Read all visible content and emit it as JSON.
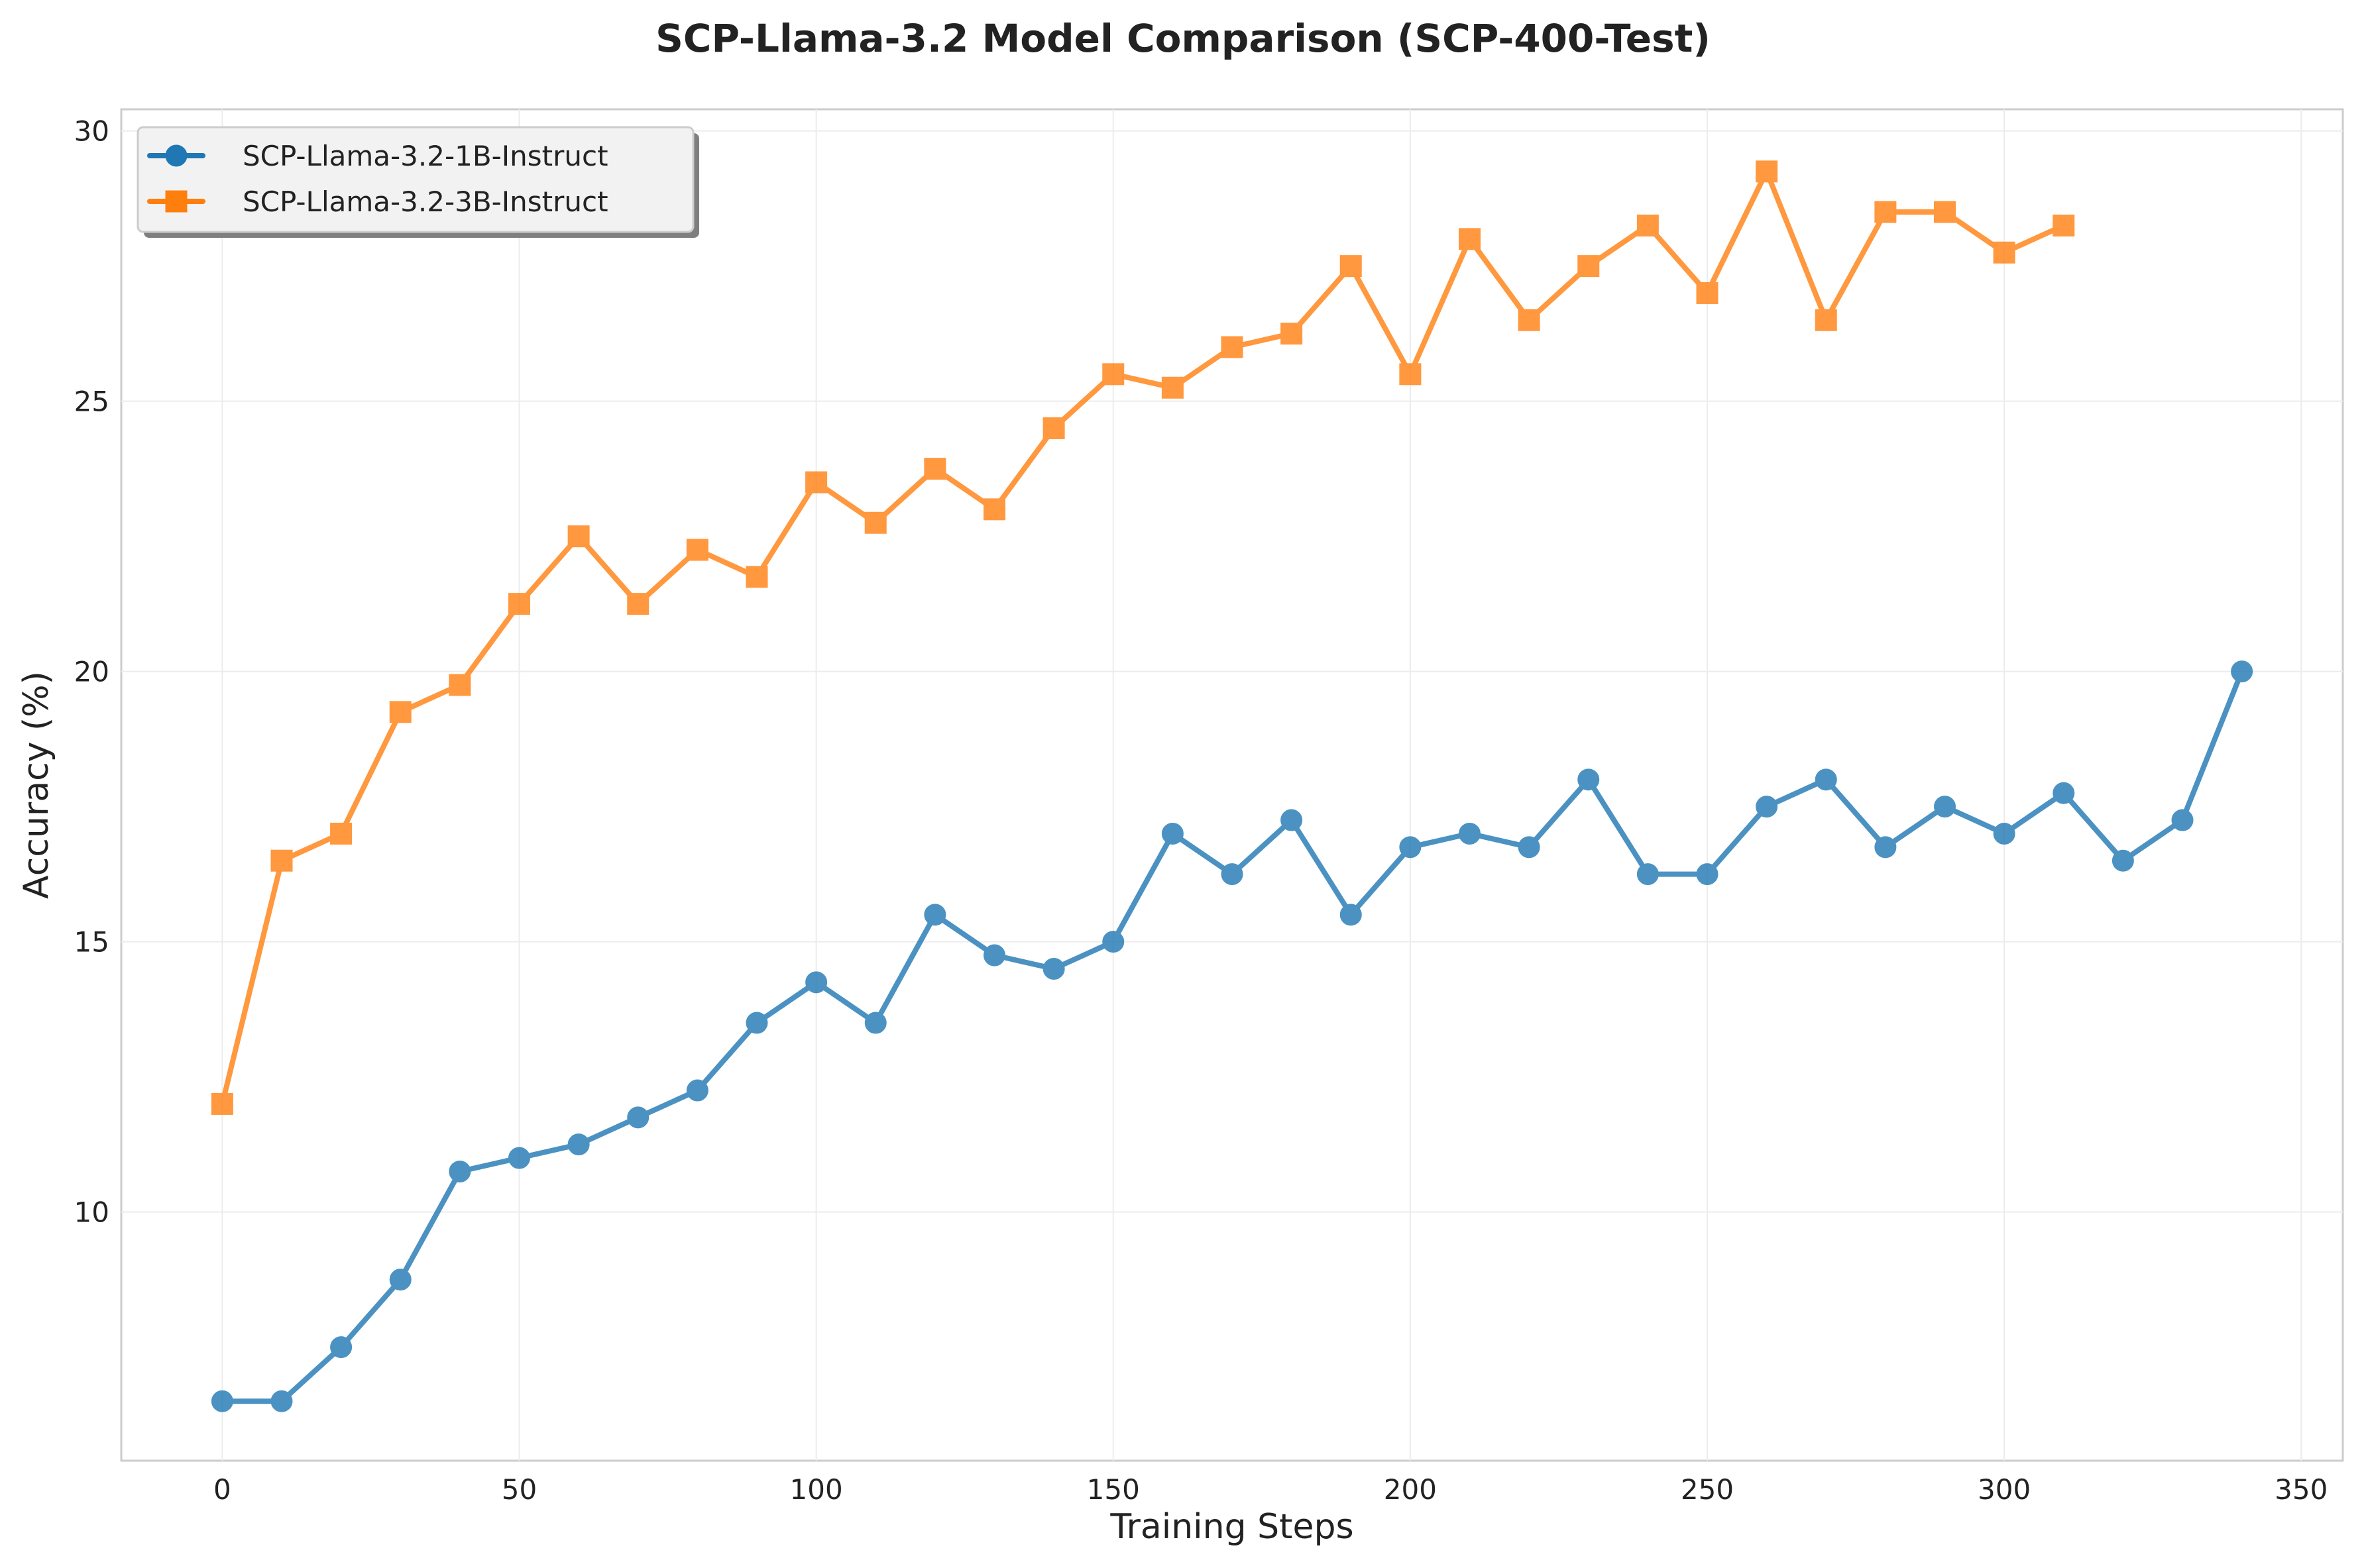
{
  "chart_data": {
    "type": "line",
    "title": "SCP-Llama-3.2 Model Comparison (SCP-400-Test)",
    "xlabel": "Training Steps",
    "ylabel": "Accuracy (%)",
    "xlim": [
      -17,
      357
    ],
    "ylim": [
      5.4,
      30.4
    ],
    "xticks": [
      0,
      50,
      100,
      150,
      200,
      250,
      300,
      350
    ],
    "yticks": [
      10,
      15,
      20,
      25,
      30
    ],
    "grid": true,
    "legend_position": "top-left",
    "series": [
      {
        "name": "SCP-Llama-3.2-1B-Instruct",
        "color": "#1f77b4",
        "marker": "circle",
        "x": [
          0,
          10,
          20,
          30,
          40,
          50,
          60,
          70,
          80,
          90,
          100,
          110,
          120,
          130,
          140,
          150,
          160,
          170,
          180,
          190,
          200,
          210,
          220,
          230,
          240,
          250,
          260,
          270,
          280,
          290,
          300,
          310,
          320,
          330,
          340
        ],
        "y": [
          6.5,
          6.5,
          7.5,
          8.75,
          10.75,
          11.0,
          11.25,
          11.75,
          12.25,
          13.5,
          14.25,
          13.5,
          15.5,
          14.75,
          14.5,
          15.0,
          17.0,
          16.25,
          17.25,
          15.5,
          16.75,
          17.0,
          16.75,
          18.0,
          16.25,
          16.25,
          17.5,
          18.0,
          16.75,
          17.5,
          17.0,
          17.75,
          16.5,
          17.25,
          20.0
        ]
      },
      {
        "name": "SCP-Llama-3.2-3B-Instruct",
        "color": "#ff7f0e",
        "marker": "square",
        "x": [
          0,
          10,
          20,
          30,
          40,
          50,
          60,
          70,
          80,
          90,
          100,
          110,
          120,
          130,
          140,
          150,
          160,
          170,
          180,
          190,
          200,
          210,
          220,
          230,
          240,
          250,
          260,
          270,
          280,
          290,
          300,
          310
        ],
        "y": [
          12.0,
          16.5,
          17.0,
          19.25,
          19.75,
          21.25,
          22.5,
          21.25,
          22.25,
          21.75,
          23.5,
          22.75,
          23.75,
          23.0,
          24.5,
          25.5,
          25.25,
          26.0,
          26.25,
          27.5,
          25.5,
          28.0,
          26.5,
          27.5,
          28.25,
          27.0,
          29.25,
          26.5,
          28.5,
          28.5,
          27.75,
          28.25
        ]
      }
    ]
  }
}
